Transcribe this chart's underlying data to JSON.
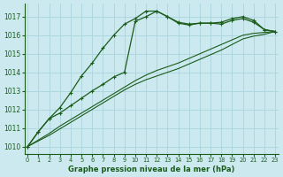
{
  "xlabel": "Graphe pression niveau de la mer (hPa)",
  "ylim": [
    1009.6,
    1017.7
  ],
  "xlim": [
    -0.3,
    23.3
  ],
  "background_color": "#cce9f0",
  "grid_color": "#aad4de",
  "line_color": "#1a5c1a",
  "x": [
    0,
    1,
    2,
    3,
    4,
    5,
    6,
    7,
    8,
    9,
    10,
    11,
    12,
    13,
    14,
    15,
    16,
    17,
    18,
    19,
    20,
    21,
    22,
    23
  ],
  "series_marked1": [
    1010.0,
    1010.8,
    1011.5,
    1012.1,
    1012.9,
    1013.8,
    1014.5,
    1015.3,
    1016.0,
    1016.6,
    1016.9,
    1017.3,
    1017.3,
    1017.0,
    1016.7,
    1016.6,
    1016.65,
    1016.65,
    1016.7,
    1016.9,
    1017.0,
    1016.8,
    1016.3,
    1016.2
  ],
  "series_marked2": [
    1010.0,
    1010.8,
    1011.5,
    1011.8,
    1012.2,
    1012.6,
    1013.0,
    1013.35,
    1013.75,
    1014.0,
    1016.75,
    1017.0,
    1017.3,
    1017.0,
    1016.65,
    1016.55,
    1016.65,
    1016.65,
    1016.6,
    1016.8,
    1016.9,
    1016.7,
    1016.3,
    1016.2
  ],
  "series_smooth1": [
    1010.0,
    1010.35,
    1010.7,
    1011.1,
    1011.45,
    1011.8,
    1012.15,
    1012.5,
    1012.85,
    1013.2,
    1013.55,
    1013.85,
    1014.1,
    1014.3,
    1014.5,
    1014.75,
    1015.0,
    1015.25,
    1015.5,
    1015.75,
    1016.0,
    1016.1,
    1016.15,
    1016.2
  ],
  "series_smooth2": [
    1010.0,
    1010.3,
    1010.6,
    1010.95,
    1011.3,
    1011.65,
    1012.0,
    1012.35,
    1012.7,
    1013.05,
    1013.35,
    1013.6,
    1013.8,
    1014.0,
    1014.2,
    1014.45,
    1014.7,
    1014.95,
    1015.2,
    1015.5,
    1015.8,
    1015.95,
    1016.05,
    1016.2
  ],
  "yticks": [
    1010,
    1011,
    1012,
    1013,
    1014,
    1015,
    1016,
    1017
  ],
  "xticks": [
    0,
    1,
    2,
    3,
    4,
    5,
    6,
    7,
    8,
    9,
    10,
    11,
    12,
    13,
    14,
    15,
    16,
    17,
    18,
    19,
    20,
    21,
    22,
    23
  ]
}
